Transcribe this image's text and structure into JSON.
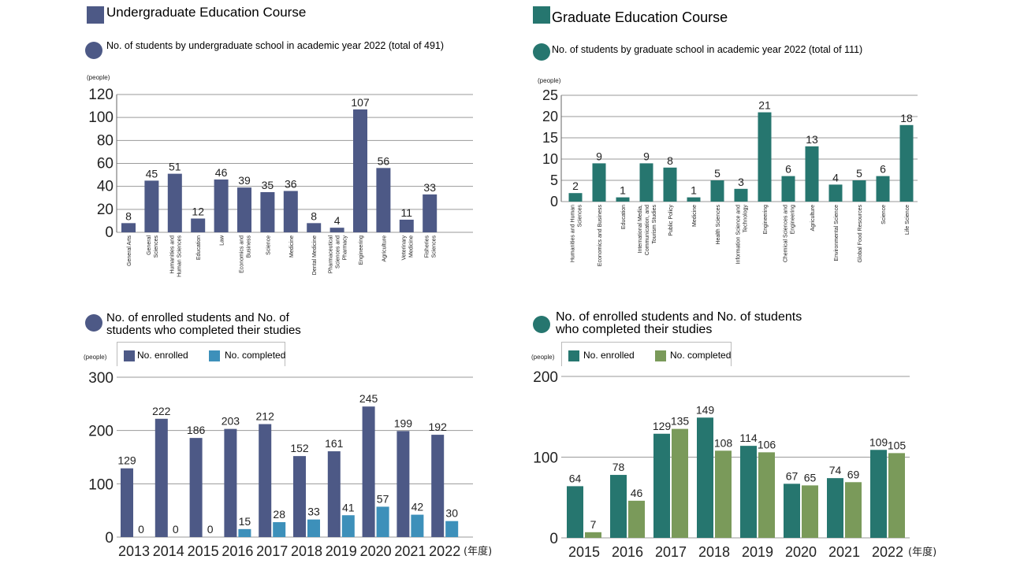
{
  "colors": {
    "undergrad": "#4d5986",
    "grad": "#26766f",
    "completed_ug": "#3d90ba",
    "completed_g": "#7a9a5a"
  },
  "headers": {
    "undergrad": "Undergraduate Education Course",
    "graduate": "Graduate Education Course"
  },
  "chart_data": [
    {
      "type": "bar",
      "title": "No. of students by undergraduate school in academic year 2022 (total of 491)",
      "unit": "(people)",
      "ylim": [
        0,
        120
      ],
      "yticks": [
        0,
        20,
        40,
        60,
        80,
        100,
        120
      ],
      "categories": [
        "General Arts",
        "General Sciences",
        "Humanities and Human Sciences",
        "Education",
        "Law",
        "Economics and Business",
        "Science",
        "Medicine",
        "Dental Medicine",
        "Pharmaceutical Sciences and Pharmacy",
        "Engineering",
        "Agriculture",
        "Veterinary Medicine",
        "Fisheries Sciences"
      ],
      "values": [
        8,
        45,
        51,
        12,
        46,
        39,
        35,
        36,
        8,
        4,
        107,
        56,
        11,
        33
      ]
    },
    {
      "type": "bar",
      "title": "No. of students by graduate school in academic year 2022 (total of 111)",
      "unit": "(people)",
      "ylim": [
        0,
        25
      ],
      "yticks": [
        0,
        5,
        10,
        15,
        20,
        25
      ],
      "categories": [
        "Humanities and Human Sciences",
        "Economics and Business",
        "Education",
        "International Media, Communication, and Tourism Studies",
        "Public Policy",
        "Medicine",
        "Health Sciences",
        "Information Science and Technology",
        "Engineering",
        "Chemical Sciences and Engineering",
        "Agriculture",
        "Environmental Science",
        "Global Food Resources",
        "Science",
        "Life Science"
      ],
      "values": [
        2,
        9,
        1,
        9,
        8,
        1,
        5,
        3,
        21,
        6,
        13,
        4,
        5,
        6,
        18
      ]
    },
    {
      "type": "bar",
      "title": "No. of enrolled students and No. of students who completed their studies",
      "unit": "(people)",
      "suffix": "(年度)",
      "ylim": [
        0,
        300
      ],
      "yticks": [
        0,
        100,
        200,
        300
      ],
      "categories": [
        "2013",
        "2014",
        "2015",
        "2016",
        "2017",
        "2018",
        "2019",
        "2020",
        "2021",
        "2022"
      ],
      "series": [
        {
          "name": "No. enrolled",
          "values": [
            129,
            222,
            186,
            203,
            212,
            152,
            161,
            245,
            199,
            192
          ]
        },
        {
          "name": "No. completed",
          "values": [
            0,
            0,
            0,
            15,
            28,
            33,
            41,
            57,
            42,
            30
          ]
        }
      ]
    },
    {
      "type": "bar",
      "title": "No. of enrolled students and No. of students who completed their studies",
      "unit": "(people)",
      "suffix": "(年度)",
      "ylim": [
        0,
        200
      ],
      "yticks": [
        0,
        100,
        200
      ],
      "categories": [
        "2015",
        "2016",
        "2017",
        "2018",
        "2019",
        "2020",
        "2021",
        "2022"
      ],
      "series": [
        {
          "name": "No. enrolled",
          "values": [
            64,
            78,
            129,
            149,
            114,
            67,
            74,
            109
          ]
        },
        {
          "name": "No. completed",
          "values": [
            7,
            46,
            135,
            108,
            106,
            65,
            69,
            105
          ]
        }
      ]
    }
  ]
}
